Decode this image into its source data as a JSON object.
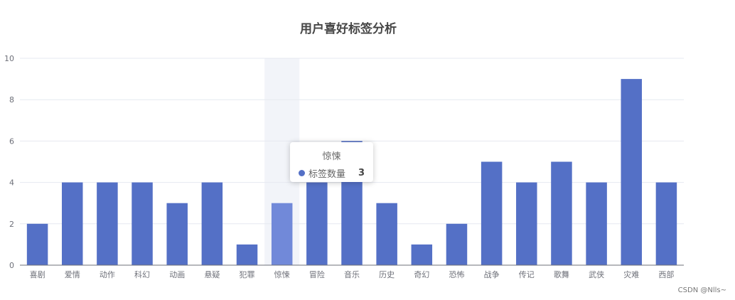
{
  "chart_data": {
    "type": "bar",
    "title": "用户喜好标签分析",
    "categories": [
      "喜剧",
      "爱情",
      "动作",
      "科幻",
      "动画",
      "悬疑",
      "犯罪",
      "惊悚",
      "冒险",
      "音乐",
      "历史",
      "奇幻",
      "恐怖",
      "战争",
      "传记",
      "歌舞",
      "武侠",
      "灾难",
      "西部"
    ],
    "series": [
      {
        "name": "标签数量",
        "values": [
          2,
          4,
          4,
          4,
          3,
          4,
          1,
          3,
          4,
          6,
          3,
          1,
          2,
          5,
          4,
          5,
          4,
          9,
          4
        ]
      }
    ],
    "ylim": [
      0,
      10
    ],
    "yticks": [
      0,
      2,
      4,
      6,
      8,
      10
    ],
    "grid": true,
    "highlighted_category": "惊悚",
    "bar_color": "#5470c6",
    "highlight_color": "#7189d9"
  },
  "tooltip": {
    "title": "惊悚",
    "series_name": "标签数量",
    "value": "3"
  },
  "watermark": "CSDN @Nlls~"
}
